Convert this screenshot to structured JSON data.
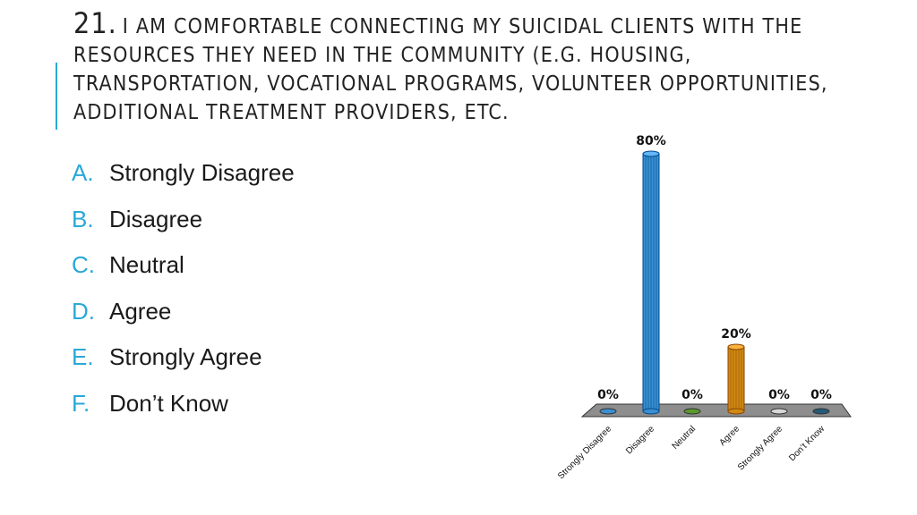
{
  "slide": {
    "number": "21.",
    "title": "I am comfortable connecting my suicidal clients with the resources they need in the community (e.g. housing, transportation, vocational programs, volunteer opportunities, additional treatment providers, etc."
  },
  "options": [
    {
      "letter": "A.",
      "label": "Strongly Disagree"
    },
    {
      "letter": "B.",
      "label": "Disagree"
    },
    {
      "letter": "C.",
      "label": "Neutral"
    },
    {
      "letter": "D.",
      "label": "Agree"
    },
    {
      "letter": "E.",
      "label": "Strongly Agree"
    },
    {
      "letter": "F.",
      "label": "Don’t Know"
    }
  ],
  "chart_data": {
    "type": "bar",
    "categories": [
      "Strongly Disagree",
      "Disagree",
      "Neutral",
      "Agree",
      "Strongly Agree",
      "Don’t Know"
    ],
    "values": [
      0,
      80,
      0,
      20,
      0,
      0
    ],
    "data_labels": [
      "0%",
      "80%",
      "0%",
      "20%",
      "0%",
      "0%"
    ],
    "colors": [
      "#3a8fd1",
      "#3a8fd1",
      "#5a9a2a",
      "#d08a14",
      "#d8d8d8",
      "#245a7a"
    ],
    "ylim": [
      0,
      80
    ],
    "grid": false,
    "style": "3d-cylinder"
  }
}
